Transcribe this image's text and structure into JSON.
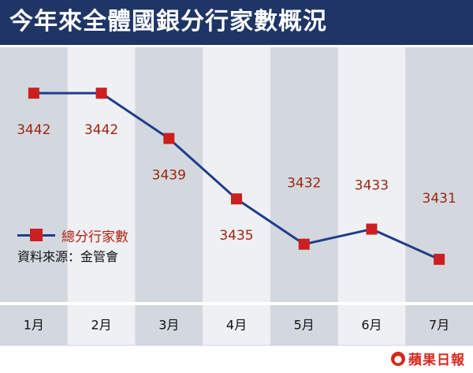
{
  "header": {
    "title": "今年來全體國銀分行家數概況"
  },
  "legend": {
    "series_label": "總分行家數",
    "source": "資料來源：金管會"
  },
  "footer": {
    "logo_text": "蘋果日報"
  },
  "colors": {
    "title_bg": "#1f3566",
    "band_dark": "#d3d8df",
    "band_light": "#eef0f3",
    "line": "#1f3d8a",
    "marker": "#cc1f1f",
    "value_label": "#a02410"
  },
  "chart_data": {
    "type": "line",
    "title": "今年來全體國銀分行家數概況",
    "categories": [
      "1月",
      "2月",
      "3月",
      "4月",
      "5月",
      "6月",
      "7月"
    ],
    "series": [
      {
        "name": "總分行家數",
        "values": [
          3442,
          3442,
          3439,
          3435,
          3432,
          3433,
          3431
        ]
      }
    ],
    "value_labels": [
      "3442",
      "3442",
      "3439",
      "3435",
      "3432",
      "3433",
      "3431"
    ],
    "ylim": [
      3430,
      3443
    ],
    "grid": false,
    "legend_position": "left"
  }
}
